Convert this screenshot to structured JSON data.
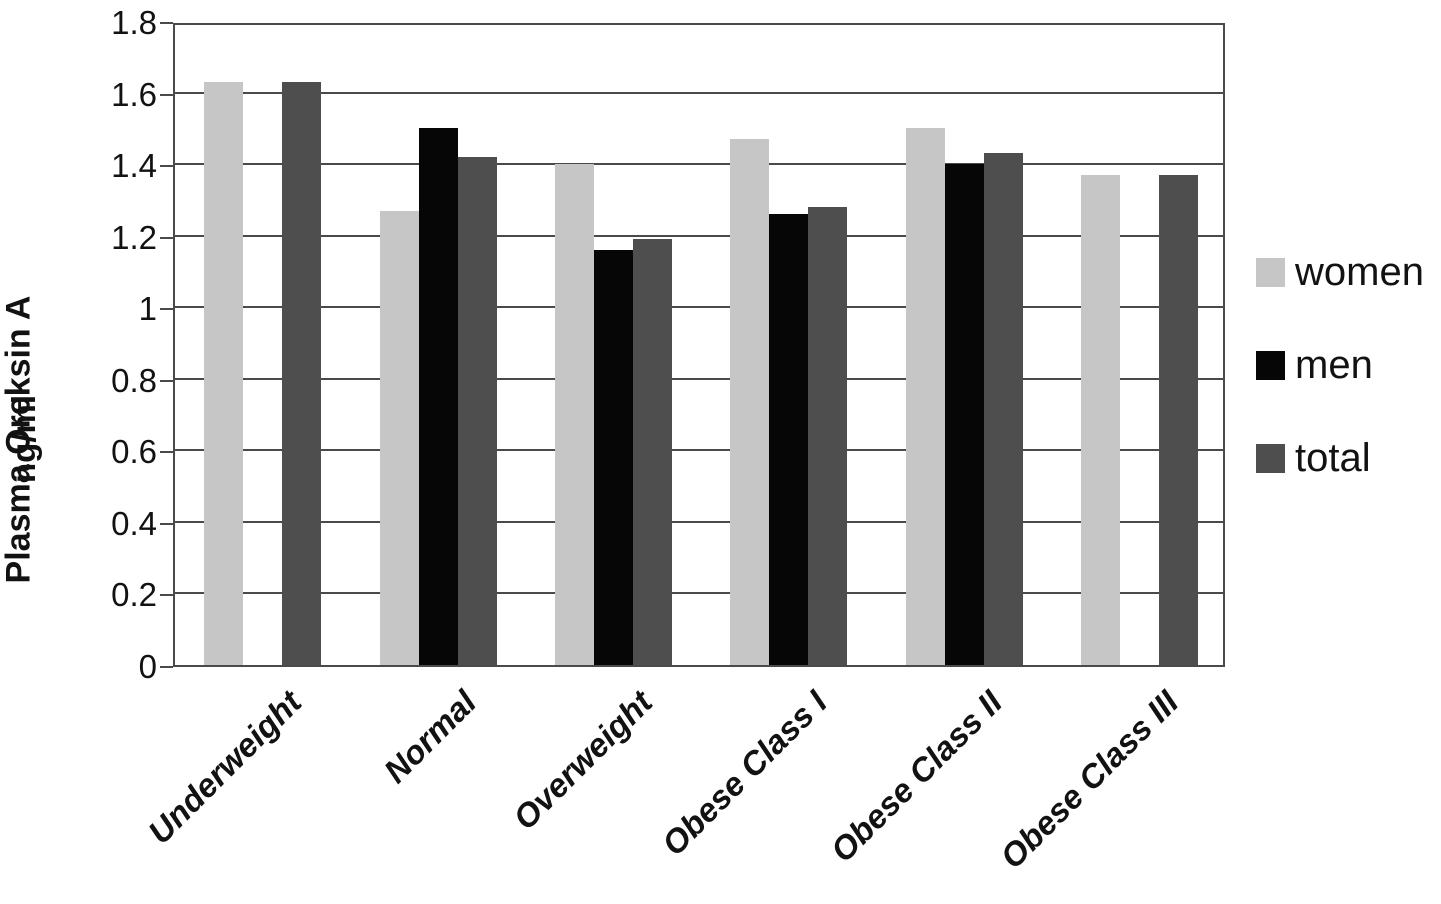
{
  "chart_data": {
    "type": "bar",
    "title": "",
    "categories": [
      "Underweight",
      "Normal",
      "Overweight",
      "Obese Class I",
      "Obese Class II",
      "Obese Class III"
    ],
    "series": [
      {
        "name": "women",
        "color": "#c6c6c6",
        "values": [
          1.63,
          1.27,
          1.4,
          1.47,
          1.5,
          1.37
        ]
      },
      {
        "name": "men",
        "color": "#060606",
        "values": [
          null,
          1.5,
          1.16,
          1.26,
          1.4,
          null
        ]
      },
      {
        "name": "total",
        "color": "#4e4e4e",
        "values": [
          1.63,
          1.42,
          1.19,
          1.28,
          1.43,
          1.37
        ]
      }
    ],
    "ylabel_line1": "Plasma Oreksin A",
    "ylabel_line2": "ng/ml",
    "xlabel": "",
    "ylim": [
      0,
      1.8
    ],
    "ytick_step": 0.2,
    "ytick_labels": [
      "0",
      "0.2",
      "0.4",
      "0.6",
      "0.8",
      "1",
      "1.2",
      "1.4",
      "1.6",
      "1.8"
    ],
    "grid": true,
    "legend_position": "right"
  },
  "legend": {
    "items": [
      {
        "label": "women",
        "color": "#c6c6c6"
      },
      {
        "label": "men",
        "color": "#060606"
      },
      {
        "label": "total",
        "color": "#4e4e4e"
      }
    ]
  },
  "colors": {
    "gridline": "#4a4a4a",
    "text": "#121212",
    "background": "#ffffff"
  }
}
